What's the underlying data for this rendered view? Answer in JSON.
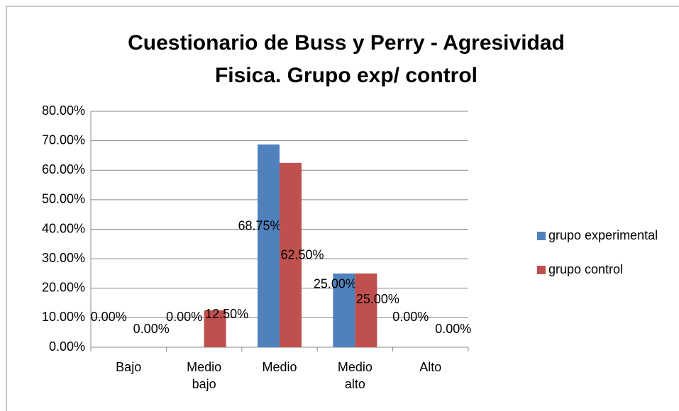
{
  "chart_data": {
    "type": "bar",
    "title": "Cuestionario de Buss y Perry - Agresividad Fisica. Grupo exp/ control",
    "categories": [
      "Bajo",
      "Medio bajo",
      "Medio",
      "Medio alto",
      "Alto"
    ],
    "series": [
      {
        "name": "grupo experimental",
        "color": "#4f81bd",
        "values": [
          0,
          0,
          68.75,
          25,
          0
        ],
        "value_labels": [
          "0.00%",
          "0.00%",
          "68.75%",
          "25.00%",
          "0.00%"
        ]
      },
      {
        "name": "grupo control",
        "color": "#c0504d",
        "values": [
          0,
          12.5,
          62.5,
          25,
          0
        ],
        "value_labels": [
          "0.00%",
          "12.50%",
          "62.50%",
          "25.00%",
          "0.00%"
        ]
      }
    ],
    "ylim": [
      0,
      80
    ],
    "yticks": [
      {
        "value": 0,
        "label": "0.00%"
      },
      {
        "value": 10,
        "label": "10.00%"
      },
      {
        "value": 20,
        "label": "20.00%"
      },
      {
        "value": 30,
        "label": "30.00%"
      },
      {
        "value": 40,
        "label": "40.00%"
      },
      {
        "value": 50,
        "label": "50.00%"
      },
      {
        "value": 60,
        "label": "60.00%"
      },
      {
        "value": 70,
        "label": "70.00%"
      },
      {
        "value": 80,
        "label": "80.00%"
      }
    ],
    "grid": true,
    "legend": "right"
  }
}
